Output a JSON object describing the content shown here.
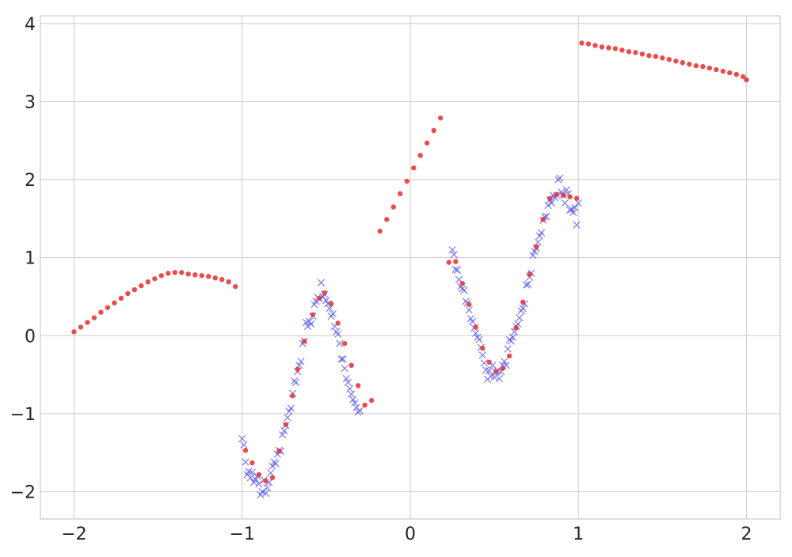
{
  "chart_data": {
    "type": "scatter",
    "title": "",
    "xlabel": "",
    "ylabel": "",
    "xlim": [
      -2.2,
      2.2
    ],
    "ylim": [
      -2.35,
      4.1
    ],
    "x_ticks": [
      -2,
      -1,
      0,
      1,
      2
    ],
    "x_tick_labels": [
      "−2",
      "−1",
      "0",
      "1",
      "2"
    ],
    "y_ticks": [
      -2,
      -1,
      0,
      1,
      2,
      3,
      4
    ],
    "y_tick_labels": [
      "−2",
      "−1",
      "0",
      "1",
      "2",
      "3",
      "4"
    ],
    "grid": true,
    "legend": "none",
    "colors": {
      "observed": "#4f4ff0",
      "predicted": "#e8393a",
      "grid": "#cccccc",
      "frame": "#cccccc"
    },
    "series": [
      {
        "marker": "x",
        "points": [
          [
            -1.0,
            -1.32
          ],
          [
            -0.99,
            -1.4
          ],
          [
            -0.98,
            -1.62
          ],
          [
            -0.97,
            -1.78
          ],
          [
            -0.96,
            -1.74
          ],
          [
            -0.95,
            -1.82
          ],
          [
            -0.94,
            -1.75
          ],
          [
            -0.93,
            -1.88
          ],
          [
            -0.92,
            -1.84
          ],
          [
            -0.91,
            -1.8
          ],
          [
            -0.9,
            -1.9
          ],
          [
            -0.89,
            -2.04
          ],
          [
            -0.88,
            -2.0
          ],
          [
            -0.87,
            -1.85
          ],
          [
            -0.86,
            -2.02
          ],
          [
            -0.85,
            -1.95
          ],
          [
            -0.84,
            -1.88
          ],
          [
            -0.83,
            -1.76
          ],
          [
            -0.82,
            -1.67
          ],
          [
            -0.81,
            -1.62
          ],
          [
            -0.8,
            -1.64
          ],
          [
            -0.79,
            -1.52
          ],
          [
            -0.78,
            -1.47
          ],
          [
            -0.77,
            -1.48
          ],
          [
            -0.76,
            -1.27
          ],
          [
            -0.75,
            -1.22
          ],
          [
            -0.74,
            -1.15
          ],
          [
            -0.73,
            -1.05
          ],
          [
            -0.72,
            -0.97
          ],
          [
            -0.71,
            -0.93
          ],
          [
            -0.7,
            -0.74
          ],
          [
            -0.69,
            -0.58
          ],
          [
            -0.68,
            -0.6
          ],
          [
            -0.67,
            -0.46
          ],
          [
            -0.66,
            -0.38
          ],
          [
            -0.65,
            -0.33
          ],
          [
            -0.64,
            -0.1
          ],
          [
            -0.63,
            -0.07
          ],
          [
            -0.62,
            0.17
          ],
          [
            -0.61,
            0.12
          ],
          [
            -0.6,
            0.18
          ],
          [
            -0.59,
            0.15
          ],
          [
            -0.58,
            0.25
          ],
          [
            -0.57,
            0.4
          ],
          [
            -0.56,
            0.44
          ],
          [
            -0.55,
            0.49
          ],
          [
            -0.54,
            0.47
          ],
          [
            -0.53,
            0.68
          ],
          [
            -0.52,
            0.5
          ],
          [
            -0.51,
            0.53
          ],
          [
            -0.5,
            0.45
          ],
          [
            -0.49,
            0.41
          ],
          [
            -0.48,
            0.35
          ],
          [
            -0.47,
            0.25
          ],
          [
            -0.46,
            0.28
          ],
          [
            -0.45,
            0.12
          ],
          [
            -0.44,
            0.05
          ],
          [
            -0.43,
            0.02
          ],
          [
            -0.42,
            -0.1
          ],
          [
            -0.41,
            -0.3
          ],
          [
            -0.4,
            -0.3
          ],
          [
            -0.39,
            -0.42
          ],
          [
            -0.38,
            -0.55
          ],
          [
            -0.37,
            -0.6
          ],
          [
            -0.36,
            -0.68
          ],
          [
            -0.35,
            -0.75
          ],
          [
            -0.34,
            -0.82
          ],
          [
            -0.33,
            -0.86
          ],
          [
            -0.32,
            -0.92
          ],
          [
            -0.31,
            -0.98
          ],
          [
            -0.3,
            -0.96
          ],
          [
            0.25,
            1.1
          ],
          [
            0.26,
            1.04
          ],
          [
            0.27,
            0.85
          ],
          [
            0.28,
            0.84
          ],
          [
            0.29,
            0.72
          ],
          [
            0.3,
            0.63
          ],
          [
            0.31,
            0.6
          ],
          [
            0.32,
            0.58
          ],
          [
            0.33,
            0.44
          ],
          [
            0.34,
            0.42
          ],
          [
            0.35,
            0.33
          ],
          [
            0.36,
            0.22
          ],
          [
            0.37,
            0.18
          ],
          [
            0.38,
            0.1
          ],
          [
            0.39,
            0.03
          ],
          [
            0.4,
            -0.02
          ],
          [
            0.41,
            -0.05
          ],
          [
            0.42,
            -0.15
          ],
          [
            0.43,
            -0.25
          ],
          [
            0.44,
            -0.35
          ],
          [
            0.45,
            -0.44
          ],
          [
            0.46,
            -0.56
          ],
          [
            0.47,
            -0.45
          ],
          [
            0.48,
            -0.52
          ],
          [
            0.49,
            -0.38
          ],
          [
            0.5,
            -0.53
          ],
          [
            0.51,
            -0.47
          ],
          [
            0.52,
            -0.45
          ],
          [
            0.53,
            -0.55
          ],
          [
            0.54,
            -0.46
          ],
          [
            0.55,
            -0.38
          ],
          [
            0.56,
            -0.33
          ],
          [
            0.57,
            -0.38
          ],
          [
            0.58,
            -0.17
          ],
          [
            0.59,
            -0.05
          ],
          [
            0.6,
            -0.07
          ],
          [
            0.61,
            -0.02
          ],
          [
            0.62,
            0.05
          ],
          [
            0.63,
            0.12
          ],
          [
            0.64,
            0.15
          ],
          [
            0.65,
            0.23
          ],
          [
            0.66,
            0.32
          ],
          [
            0.67,
            0.35
          ],
          [
            0.68,
            0.41
          ],
          [
            0.69,
            0.65
          ],
          [
            0.7,
            0.66
          ],
          [
            0.71,
            0.75
          ],
          [
            0.72,
            0.8
          ],
          [
            0.73,
            1.03
          ],
          [
            0.74,
            1.08
          ],
          [
            0.75,
            1.12
          ],
          [
            0.76,
            1.2
          ],
          [
            0.77,
            1.28
          ],
          [
            0.78,
            1.32
          ],
          [
            0.79,
            1.48
          ],
          [
            0.8,
            1.52
          ],
          [
            0.81,
            1.53
          ],
          [
            0.82,
            1.67
          ],
          [
            0.83,
            1.74
          ],
          [
            0.84,
            1.7
          ],
          [
            0.85,
            1.8
          ],
          [
            0.86,
            1.77
          ],
          [
            0.87,
            1.8
          ],
          [
            0.88,
            2.0
          ],
          [
            0.89,
            2.02
          ],
          [
            0.9,
            1.84
          ],
          [
            0.91,
            1.8
          ],
          [
            0.92,
            1.7
          ],
          [
            0.93,
            1.87
          ],
          [
            0.94,
            1.82
          ],
          [
            0.95,
            1.61
          ],
          [
            0.96,
            1.62
          ],
          [
            0.97,
            1.58
          ],
          [
            0.98,
            1.64
          ],
          [
            0.99,
            1.42
          ],
          [
            1.0,
            1.7
          ]
        ]
      },
      {
        "marker": "o",
        "points": [
          [
            -2.0,
            0.05
          ],
          [
            -1.96,
            0.11
          ],
          [
            -1.92,
            0.17
          ],
          [
            -1.88,
            0.23
          ],
          [
            -1.84,
            0.3
          ],
          [
            -1.8,
            0.36
          ],
          [
            -1.76,
            0.42
          ],
          [
            -1.72,
            0.48
          ],
          [
            -1.68,
            0.54
          ],
          [
            -1.64,
            0.59
          ],
          [
            -1.6,
            0.64
          ],
          [
            -1.56,
            0.69
          ],
          [
            -1.52,
            0.73
          ],
          [
            -1.48,
            0.77
          ],
          [
            -1.44,
            0.8
          ],
          [
            -1.4,
            0.81
          ],
          [
            -1.36,
            0.81
          ],
          [
            -1.32,
            0.79
          ],
          [
            -1.28,
            0.78
          ],
          [
            -1.24,
            0.77
          ],
          [
            -1.2,
            0.76
          ],
          [
            -1.16,
            0.74
          ],
          [
            -1.12,
            0.72
          ],
          [
            -1.08,
            0.69
          ],
          [
            -1.04,
            0.63
          ],
          [
            -0.98,
            -1.47
          ],
          [
            -0.94,
            -1.63
          ],
          [
            -0.9,
            -1.78
          ],
          [
            -0.86,
            -1.86
          ],
          [
            -0.82,
            -1.82
          ],
          [
            -0.78,
            -1.48
          ],
          [
            -0.74,
            -1.14
          ],
          [
            -0.7,
            -0.77
          ],
          [
            -0.67,
            -0.43
          ],
          [
            -0.63,
            -0.07
          ],
          [
            -0.58,
            0.27
          ],
          [
            -0.54,
            0.48
          ],
          [
            -0.51,
            0.55
          ],
          [
            -0.47,
            0.41
          ],
          [
            -0.43,
            0.16
          ],
          [
            -0.39,
            -0.1
          ],
          [
            -0.35,
            -0.38
          ],
          [
            -0.31,
            -0.64
          ],
          [
            -0.27,
            -0.89
          ],
          [
            -0.23,
            -0.83
          ],
          [
            -0.18,
            1.34
          ],
          [
            -0.14,
            1.49
          ],
          [
            -0.1,
            1.65
          ],
          [
            -0.06,
            1.82
          ],
          [
            -0.02,
            1.98
          ],
          [
            0.02,
            2.15
          ],
          [
            0.06,
            2.31
          ],
          [
            0.1,
            2.47
          ],
          [
            0.14,
            2.63
          ],
          [
            0.18,
            2.79
          ],
          [
            0.23,
            0.94
          ],
          [
            0.27,
            0.95
          ],
          [
            0.31,
            0.67
          ],
          [
            0.35,
            0.4
          ],
          [
            0.39,
            0.11
          ],
          [
            0.43,
            -0.16
          ],
          [
            0.47,
            -0.34
          ],
          [
            0.51,
            -0.46
          ],
          [
            0.55,
            -0.42
          ],
          [
            0.59,
            -0.26
          ],
          [
            0.63,
            0.1
          ],
          [
            0.67,
            0.43
          ],
          [
            0.71,
            0.79
          ],
          [
            0.75,
            1.14
          ],
          [
            0.79,
            1.49
          ],
          [
            0.83,
            1.76
          ],
          [
            0.87,
            1.81
          ],
          [
            0.91,
            1.8
          ],
          [
            0.95,
            1.78
          ],
          [
            0.99,
            1.76
          ],
          [
            1.02,
            3.75
          ],
          [
            1.06,
            3.74
          ],
          [
            1.1,
            3.72
          ],
          [
            1.14,
            3.7
          ],
          [
            1.18,
            3.69
          ],
          [
            1.22,
            3.68
          ],
          [
            1.26,
            3.66
          ],
          [
            1.3,
            3.64
          ],
          [
            1.34,
            3.63
          ],
          [
            1.38,
            3.61
          ],
          [
            1.42,
            3.59
          ],
          [
            1.46,
            3.58
          ],
          [
            1.5,
            3.56
          ],
          [
            1.54,
            3.54
          ],
          [
            1.58,
            3.52
          ],
          [
            1.62,
            3.5
          ],
          [
            1.66,
            3.48
          ],
          [
            1.7,
            3.46
          ],
          [
            1.74,
            3.45
          ],
          [
            1.78,
            3.43
          ],
          [
            1.82,
            3.41
          ],
          [
            1.86,
            3.39
          ],
          [
            1.9,
            3.37
          ],
          [
            1.94,
            3.35
          ],
          [
            1.98,
            3.32
          ],
          [
            2.0,
            3.28
          ]
        ]
      }
    ]
  }
}
